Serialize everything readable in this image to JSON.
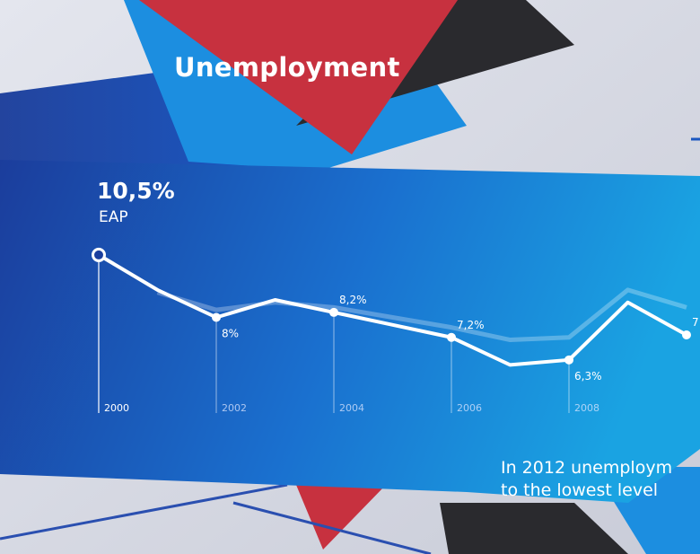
{
  "header": {
    "title": "Unemployment"
  },
  "lead": {
    "value": "10,5%",
    "unit": "EAP"
  },
  "caption": {
    "line1": "In 2012 unemploym",
    "line2": "to the lowest level"
  },
  "colors": {
    "panel_dark": "#1b3f9e",
    "panel_light": "#1aa0e0",
    "accent_red": "#c7313f",
    "accent_dark": "#2a2a2e",
    "accent_sky": "#1c8ee0",
    "line": "#ffffff"
  },
  "chart_data": {
    "type": "line",
    "title": "Unemployment",
    "ylabel": "EAP",
    "x": [
      2000,
      2001,
      2002,
      2003,
      2004,
      2005,
      2006,
      2007,
      2008,
      2009,
      2010
    ],
    "xticks": [
      "2000",
      "2002",
      "2004",
      "2006",
      "2008"
    ],
    "series": [
      {
        "values": [
          10.5,
          9.1,
          8.0,
          8.7,
          8.2,
          7.7,
          7.2,
          6.1,
          6.3,
          8.6,
          7.3
        ]
      },
      {
        "values": [
          null,
          9.0,
          8.3,
          8.6,
          8.4,
          8.0,
          7.6,
          7.1,
          7.2,
          9.1,
          8.4
        ]
      }
    ],
    "data_labels": [
      {
        "x": 2000,
        "text": "10,5%"
      },
      {
        "x": 2002,
        "text": "8%"
      },
      {
        "x": 2004,
        "text": "8,2%"
      },
      {
        "x": 2006,
        "text": "7,2%"
      },
      {
        "x": 2008,
        "text": "6,3%"
      },
      {
        "x": 2010,
        "text": "7"
      }
    ],
    "ylim": [
      5,
      11
    ]
  }
}
